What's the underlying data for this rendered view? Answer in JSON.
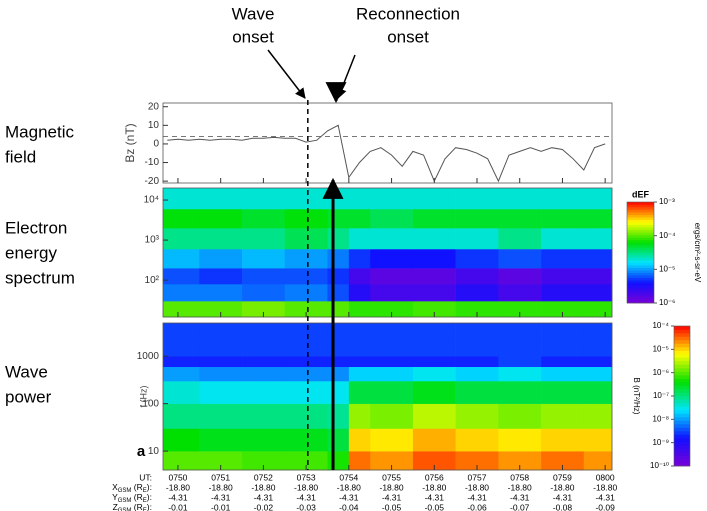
{
  "annotations": [
    {
      "lines": [
        "Wave",
        "onset"
      ]
    },
    {
      "lines": [
        "Reconnection",
        "onset"
      ]
    }
  ],
  "panel_labels": [
    [
      "Magnetic",
      "field"
    ],
    [
      "Electron",
      "energy",
      "spectrum"
    ],
    [
      "Wave",
      "power"
    ]
  ],
  "markers": [
    {
      "x": 53.04,
      "style": "dashed"
    },
    {
      "x": 53.63,
      "style": "solid"
    }
  ],
  "colormap": [
    "#7a00d8",
    "#1010ff",
    "#00e5ff",
    "#00e000",
    "#ffff00",
    "#ff0000"
  ],
  "chart_data": [
    {
      "type": "line",
      "ylabel": "Bz (nT)",
      "x": [
        49.75,
        50,
        50.25,
        50.5,
        50.75,
        51,
        51.25,
        51.5,
        51.75,
        52,
        52.25,
        52.5,
        52.75,
        53,
        53.25,
        53.5,
        53.75,
        54,
        54.25,
        54.5,
        54.75,
        55,
        55.25,
        55.5,
        55.75,
        56,
        56.25,
        56.5,
        56.75,
        57,
        57.25,
        57.5,
        57.75,
        58,
        58.25,
        58.5,
        58.75,
        59,
        59.25,
        59.5,
        59.75,
        60
      ],
      "values": [
        2,
        2.5,
        2,
        2.5,
        2,
        2.5,
        2.5,
        2,
        3,
        3,
        3.5,
        3,
        3,
        1,
        2,
        7,
        10,
        -18,
        -10,
        -4,
        -2,
        -6,
        -12,
        -4,
        -6,
        -20,
        -8,
        -2,
        -3,
        -5,
        -8,
        -20,
        -6,
        -4,
        -2,
        -4,
        -2,
        -3,
        -8,
        -14,
        -2,
        0
      ],
      "color": "#555555",
      "xlim": [
        49.65,
        60.16
      ],
      "ylim": [
        -21,
        22
      ],
      "yticks": [
        20,
        10,
        0,
        -10,
        -20
      ],
      "xticks": [
        50,
        51,
        52,
        53,
        54,
        55,
        56,
        57,
        58,
        59,
        60
      ],
      "reference_y": 4
    },
    {
      "type": "heatmap",
      "log_y": true,
      "log_z": true,
      "xlim": [
        49.65,
        60.16
      ],
      "ylim": [
        12,
        20000
      ],
      "xticks": [
        50,
        51,
        52,
        53,
        54,
        55,
        56,
        57,
        58,
        59,
        60
      ],
      "yticks": [
        {
          "value": 100,
          "label": "10²"
        },
        {
          "value": 1000,
          "label": "10³"
        },
        {
          "value": 10000,
          "label": "10⁴"
        }
      ],
      "x_bins": [
        49.65,
        50.5,
        51.5,
        52.5,
        53.5,
        54,
        54.5,
        55.5,
        56.5,
        57.5,
        58.5,
        59.5,
        60.16
      ],
      "y_bins": [
        12,
        30,
        80,
        200,
        600,
        2000,
        6000,
        20000
      ],
      "z": [
        [
          0.0001,
          0.0001,
          0.00012,
          0.0001,
          0.0001,
          8e-05,
          8e-05,
          9e-05,
          8e-05,
          8e-05,
          8e-05,
          8e-05
        ],
        [
          8e-06,
          8e-06,
          7e-06,
          8e-06,
          6e-06,
          3e-06,
          2e-06,
          2e-06,
          3e-06,
          2e-06,
          3e-06,
          3e-06
        ],
        [
          6e-06,
          5e-06,
          6e-06,
          6e-06,
          5e-06,
          2e-06,
          1.5e-06,
          1.5e-06,
          2e-06,
          1.5e-06,
          2e-06,
          2e-06
        ],
        [
          1.2e-05,
          1e-05,
          1.2e-05,
          1e-05,
          8e-06,
          5e-06,
          4e-06,
          4e-06,
          5e-06,
          6e-06,
          5e-06,
          5e-06
        ],
        [
          3e-05,
          3e-05,
          3e-05,
          4e-05,
          3e-05,
          2e-05,
          2e-05,
          2e-05,
          2e-05,
          3e-05,
          2e-05,
          2e-05
        ],
        [
          6e-05,
          6e-05,
          5e-05,
          6e-05,
          5e-05,
          5e-05,
          4e-05,
          5e-05,
          5e-05,
          5e-05,
          5e-05,
          5e-05
        ],
        [
          2e-05,
          2e-05,
          2e-05,
          2e-05,
          2e-05,
          2e-05,
          2e-05,
          2e-05,
          2e-05,
          2e-05,
          2e-05,
          2e-05
        ]
      ],
      "colorbar": {
        "title": "dEF",
        "label": "ergs/cm²-s-sr-eV",
        "zlim": [
          1e-06,
          0.001
        ],
        "zticks": [
          {
            "value": 0.001,
            "label": "10⁻³"
          },
          {
            "value": 0.0001,
            "label": "10⁻⁴"
          },
          {
            "value": 1e-05,
            "label": "10⁻⁵"
          },
          {
            "value": 1e-06,
            "label": "10⁻⁶"
          }
        ]
      }
    },
    {
      "type": "heatmap",
      "ylabel": "f (Hz)",
      "panel_letter": "a",
      "log_y": true,
      "log_z": true,
      "xlim": [
        49.65,
        60.16
      ],
      "ylim": [
        4,
        5000
      ],
      "xticks": [
        {
          "value": 50,
          "label": "0750"
        },
        {
          "value": 51,
          "label": "0751"
        },
        {
          "value": 52,
          "label": "0752"
        },
        {
          "value": 53,
          "label": "0753"
        },
        {
          "value": 54,
          "label": "0754"
        },
        {
          "value": 55,
          "label": "0755"
        },
        {
          "value": 56,
          "label": "0756"
        },
        {
          "value": 57,
          "label": "0757"
        },
        {
          "value": 58,
          "label": "0758"
        },
        {
          "value": 59,
          "label": "0759"
        },
        {
          "value": 60,
          "label": "0800"
        }
      ],
      "yticks": [
        10,
        100,
        1000
      ],
      "x_bins": [
        49.65,
        50.5,
        51.5,
        52.5,
        53.5,
        54,
        54.5,
        55.5,
        56.5,
        57.5,
        58.5,
        59.5,
        60.16
      ],
      "y_bins": [
        4,
        10,
        30,
        100,
        300,
        600,
        1000,
        2000,
        5000
      ],
      "z": [
        [
          1e-06,
          1e-06,
          8e-07,
          8e-07,
          5e-07,
          3e-05,
          2e-05,
          4e-05,
          3e-05,
          2e-05,
          3e-05,
          2e-05
        ],
        [
          4e-07,
          3e-07,
          3e-07,
          3e-07,
          2e-07,
          1e-05,
          8e-06,
          1.5e-05,
          1e-05,
          8e-06,
          1e-05,
          1e-05
        ],
        [
          1e-07,
          1e-07,
          1e-07,
          1e-07,
          8e-08,
          2e-06,
          1.5e-06,
          3e-06,
          2e-06,
          1.5e-06,
          2e-06,
          2e-06
        ],
        [
          4e-08,
          3e-08,
          3e-08,
          3e-08,
          3e-08,
          2e-07,
          2e-07,
          3e-07,
          2e-07,
          2e-07,
          2e-07,
          2e-07
        ],
        [
          1e-08,
          8e-09,
          8e-09,
          8e-09,
          8e-09,
          2e-08,
          2e-08,
          3e-08,
          2e-08,
          3e-08,
          2e-08,
          2e-08
        ],
        [
          2e-09,
          2e-09,
          2e-09,
          2e-09,
          2e-09,
          2e-09,
          2e-09,
          2e-09,
          2e-09,
          3e-09,
          2e-09,
          2e-09
        ],
        [
          3e-09,
          3e-09,
          3e-09,
          3e-09,
          3e-09,
          3e-09,
          3e-09,
          3e-09,
          3e-09,
          3e-09,
          3e-09,
          3e-09
        ],
        [
          3e-09,
          3e-09,
          3e-09,
          3e-09,
          3e-09,
          3e-09,
          3e-09,
          3e-09,
          3e-09,
          3e-09,
          3e-09,
          3e-09
        ]
      ],
      "colorbar": {
        "label": "B (nT²/Hz)",
        "zlim": [
          1e-10,
          0.0001
        ],
        "zticks": [
          {
            "value": 0.0001,
            "label": "10⁻⁴"
          },
          {
            "value": 1e-05,
            "label": "10⁻⁵"
          },
          {
            "value": 1e-06,
            "label": "10⁻⁶"
          },
          {
            "value": 1e-07,
            "label": "10⁻⁷"
          },
          {
            "value": 1e-08,
            "label": "10⁻⁸"
          },
          {
            "value": 1e-09,
            "label": "10⁻⁹"
          },
          {
            "value": 1e-10,
            "label": "10⁻¹⁰"
          }
        ]
      }
    }
  ],
  "ephemeris": {
    "ut_label": "UT:",
    "rows": [
      {
        "label": [
          "X",
          "GSM",
          " (R",
          "E",
          "):"
        ],
        "values": [
          "-18.80",
          "-18.80",
          "-18.80",
          "-18.80",
          "-18.80",
          "-18.80",
          "-18.80",
          "-18.80",
          "-18.80",
          "-18.80",
          "-18.80"
        ]
      },
      {
        "label": [
          "Y",
          "GSM",
          " (R",
          "E",
          "):"
        ],
        "values": [
          "-4.31",
          "-4.31",
          "-4.31",
          "-4.31",
          "-4.31",
          "-4.31",
          "-4.31",
          "-4.31",
          "-4.31",
          "-4.31",
          "-4.31"
        ]
      },
      {
        "label": [
          "Z",
          "GSM",
          " (R",
          "E",
          "):"
        ],
        "values": [
          "-0.01",
          "-0.01",
          "-0.02",
          "-0.03",
          "-0.04",
          "-0.05",
          "-0.05",
          "-0.06",
          "-0.07",
          "-0.08",
          "-0.09"
        ]
      }
    ]
  }
}
